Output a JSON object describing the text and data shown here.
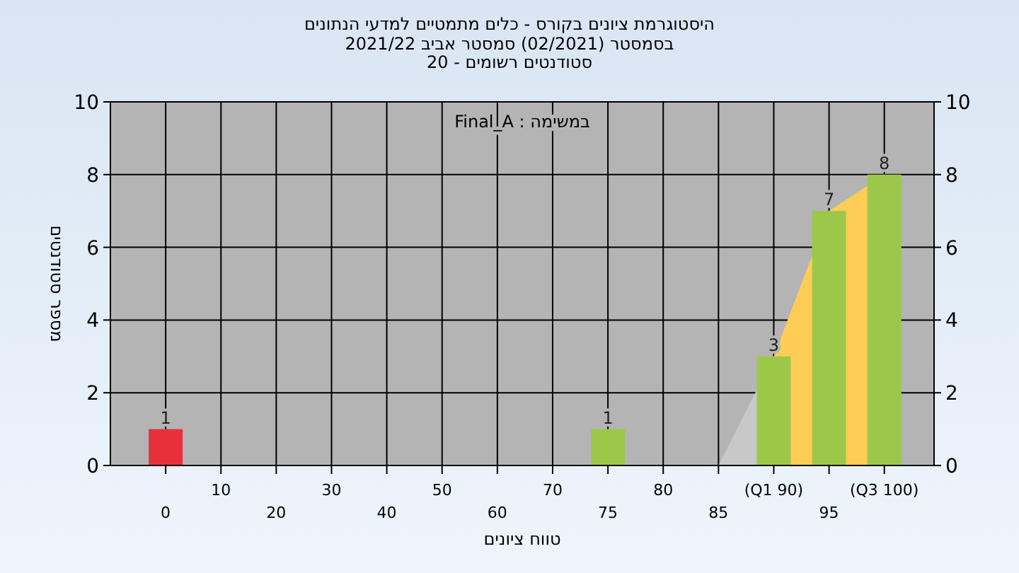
{
  "chart_data": {
    "type": "bar",
    "title": "היסטוגרמת ציונים בקורס - כלים מתמטיים למדעי הנתונים",
    "subtitle": "בסמסטר  (02/2021)  סמסטר אביב 2021/22\nסטודנטים רשומים - 20",
    "xlabel": "טווח ציונים",
    "ylabel": "מספר סטודנטים",
    "annotations": [
      "במשימה : Final_A"
    ],
    "categories": [
      "0",
      "10",
      "20",
      "30",
      "40",
      "50",
      "60",
      "70",
      "75",
      "80",
      "85",
      "(Q1 90)",
      "95",
      "(Q3 100)"
    ],
    "series": [
      {
        "type": "area",
        "color": "#c8c8c8",
        "values": [
          null,
          null,
          null,
          null,
          null,
          null,
          null,
          null,
          null,
          null,
          0,
          3,
          null,
          null
        ]
      },
      {
        "type": "area",
        "color": "#ffcc55",
        "values": [
          null,
          null,
          null,
          null,
          null,
          null,
          null,
          null,
          null,
          null,
          null,
          3,
          7,
          8
        ]
      },
      {
        "colors": [
          "#e8303a",
          "#9cc84a",
          "#9cc84a",
          "#9cc84a",
          "#9cc84a",
          "#9cc84a",
          "#9cc84a",
          "#9cc84a",
          "#9cc84a",
          "#9cc84a",
          "#9cc84a",
          "#9cc84a",
          "#9cc84a",
          "#9cc84a"
        ],
        "values": [
          1,
          0,
          0,
          0,
          0,
          0,
          0,
          0,
          1,
          0,
          0,
          3,
          7,
          8
        ],
        "value_labels": [
          "1",
          null,
          null,
          null,
          null,
          null,
          null,
          null,
          "1",
          null,
          null,
          "3",
          "7",
          "8"
        ]
      }
    ],
    "ylim": [
      0,
      10
    ],
    "yticks": [
      0,
      2,
      4,
      6,
      8,
      10
    ],
    "y2lim": [
      0,
      10
    ],
    "y2ticks": [
      0,
      2,
      4,
      6,
      8,
      10
    ],
    "grid": true
  }
}
